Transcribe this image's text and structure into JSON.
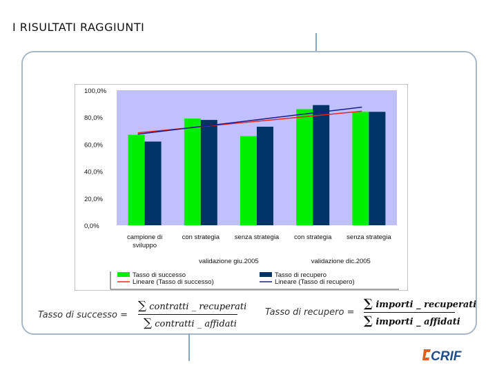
{
  "header": {
    "title": "I RISULTATI RAGGIUNTI"
  },
  "chart_data": {
    "type": "bar",
    "categories": [
      "campione di sviluppo",
      "con strategia",
      "senza strategia",
      "con strategia",
      "senza strategia"
    ],
    "category_lines": [
      [
        "campione di",
        "sviluppo"
      ],
      [
        "con strategia"
      ],
      [
        "senza strategia"
      ],
      [
        "con strategia"
      ],
      [
        "senza strategia"
      ]
    ],
    "groups": [
      {
        "label": "validazione giu.2005",
        "categories": [
          1,
          2
        ]
      },
      {
        "label": "validazione dic.2005",
        "categories": [
          3,
          4
        ]
      }
    ],
    "series": [
      {
        "name": "Tasso di successo",
        "color": "#00ee00",
        "values": [
          67,
          79,
          66,
          86,
          84
        ]
      },
      {
        "name": "Tasso di recupero",
        "color": "#003366",
        "values": [
          62,
          78,
          73,
          89,
          84
        ]
      }
    ],
    "trendlines": [
      {
        "name": "Lineare (Tasso di successo)",
        "color": "#ee2222",
        "values": [
          68.5,
          72.5,
          76.5,
          80.5,
          84.5
        ]
      },
      {
        "name": "Lineare (Tasso di recupero)",
        "color": "#1a1a8a",
        "values": [
          67.5,
          72.5,
          77.5,
          82.5,
          87.5
        ]
      }
    ],
    "y_ticks": [
      "0,0%",
      "20,0%",
      "40,0%",
      "60,0%",
      "80,0%",
      "100,0%"
    ],
    "ylim": [
      0,
      100
    ],
    "plot_bg": "#c0c0ff"
  },
  "formulas": {
    "success": {
      "label": "Tasso di successo =",
      "numerator": "contratti _ recuperati",
      "denominator": "contratti _ affidati",
      "sigma": "∑"
    },
    "recovery": {
      "label": "Tasso di recupero =",
      "numerator": "importi _ recuperati",
      "denominator": "importi _ affidati",
      "sigma": "∑"
    }
  },
  "logo": {
    "text": "CRIF",
    "color": "#1f4e8c",
    "accent": "#e65c1a"
  }
}
